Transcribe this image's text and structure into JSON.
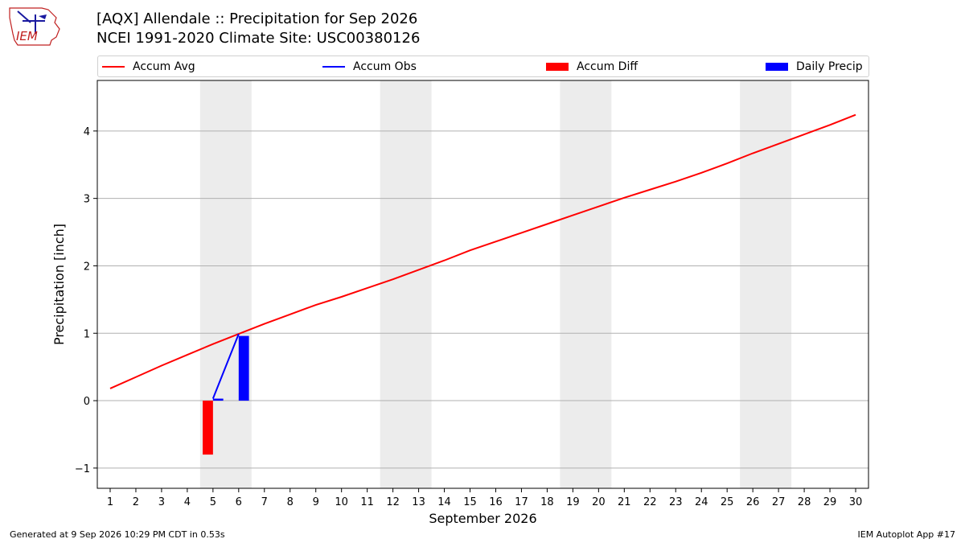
{
  "header": {
    "title_line1": "[AQX] Allendale :: Precipitation for Sep 2026",
    "title_line2": "NCEI 1991-2020 Climate Site: USC00380126"
  },
  "logo": {
    "text": "IEM"
  },
  "footer": {
    "left": "Generated at 9 Sep 2026 10:29 PM CDT in 0.53s",
    "right": "IEM Autoplot App #17"
  },
  "colors": {
    "accum_avg": "#ff0000",
    "accum_obs": "#0000ff",
    "accum_diff": "#ff0000",
    "daily_precip": "#0000ff",
    "weekend_shade": "#ececec",
    "grid": "#b0b0b0"
  },
  "chart_data": {
    "type": "line",
    "xlabel": "September 2026",
    "ylabel": "Precipitation [inch]",
    "xlim": [
      0.5,
      30.5
    ],
    "ylim": [
      -1.3,
      4.75
    ],
    "x_ticks": [
      1,
      2,
      3,
      4,
      5,
      6,
      7,
      8,
      9,
      10,
      11,
      12,
      13,
      14,
      15,
      16,
      17,
      18,
      19,
      20,
      21,
      22,
      23,
      24,
      25,
      26,
      27,
      28,
      29,
      30
    ],
    "y_ticks": [
      -1,
      0,
      1,
      2,
      3,
      4
    ],
    "y_tick_labels": [
      "−1",
      "0",
      "1",
      "2",
      "3",
      "4"
    ],
    "grid": "horizontal",
    "legend_position": "top",
    "weekend_shading": [
      [
        4.5,
        6.5
      ],
      [
        11.5,
        13.5
      ],
      [
        18.5,
        20.5
      ],
      [
        25.5,
        27.5
      ]
    ],
    "legend": [
      {
        "name": "Accum Avg",
        "kind": "line",
        "color": "#ff0000"
      },
      {
        "name": "Accum Obs",
        "kind": "line",
        "color": "#0000ff"
      },
      {
        "name": "Accum Diff",
        "kind": "bar",
        "color": "#ff0000"
      },
      {
        "name": "Daily Precip",
        "kind": "bar",
        "color": "#0000ff"
      }
    ],
    "series": [
      {
        "name": "Accum Avg",
        "x": [
          1,
          2,
          3,
          4,
          5,
          6,
          7,
          8,
          9,
          10,
          11,
          12,
          13,
          14,
          15,
          16,
          17,
          18,
          19,
          20,
          21,
          22,
          23,
          24,
          25,
          26,
          27,
          28,
          29,
          30
        ],
        "values": [
          0.18,
          0.35,
          0.52,
          0.68,
          0.84,
          0.99,
          1.14,
          1.28,
          1.42,
          1.54,
          1.67,
          1.8,
          1.94,
          2.08,
          2.23,
          2.36,
          2.49,
          2.62,
          2.75,
          2.88,
          3.01,
          3.13,
          3.25,
          3.38,
          3.52,
          3.67,
          3.81,
          3.95,
          4.09,
          4.24
        ]
      },
      {
        "name": "Accum Obs",
        "x": [
          5,
          6
        ],
        "values": [
          0.03,
          0.99
        ]
      },
      {
        "name": "Accum Diff",
        "x": [
          5
        ],
        "values": [
          -0.8
        ]
      },
      {
        "name": "Daily Precip",
        "x": [
          5,
          6
        ],
        "values": [
          0.03,
          0.96
        ]
      }
    ]
  }
}
